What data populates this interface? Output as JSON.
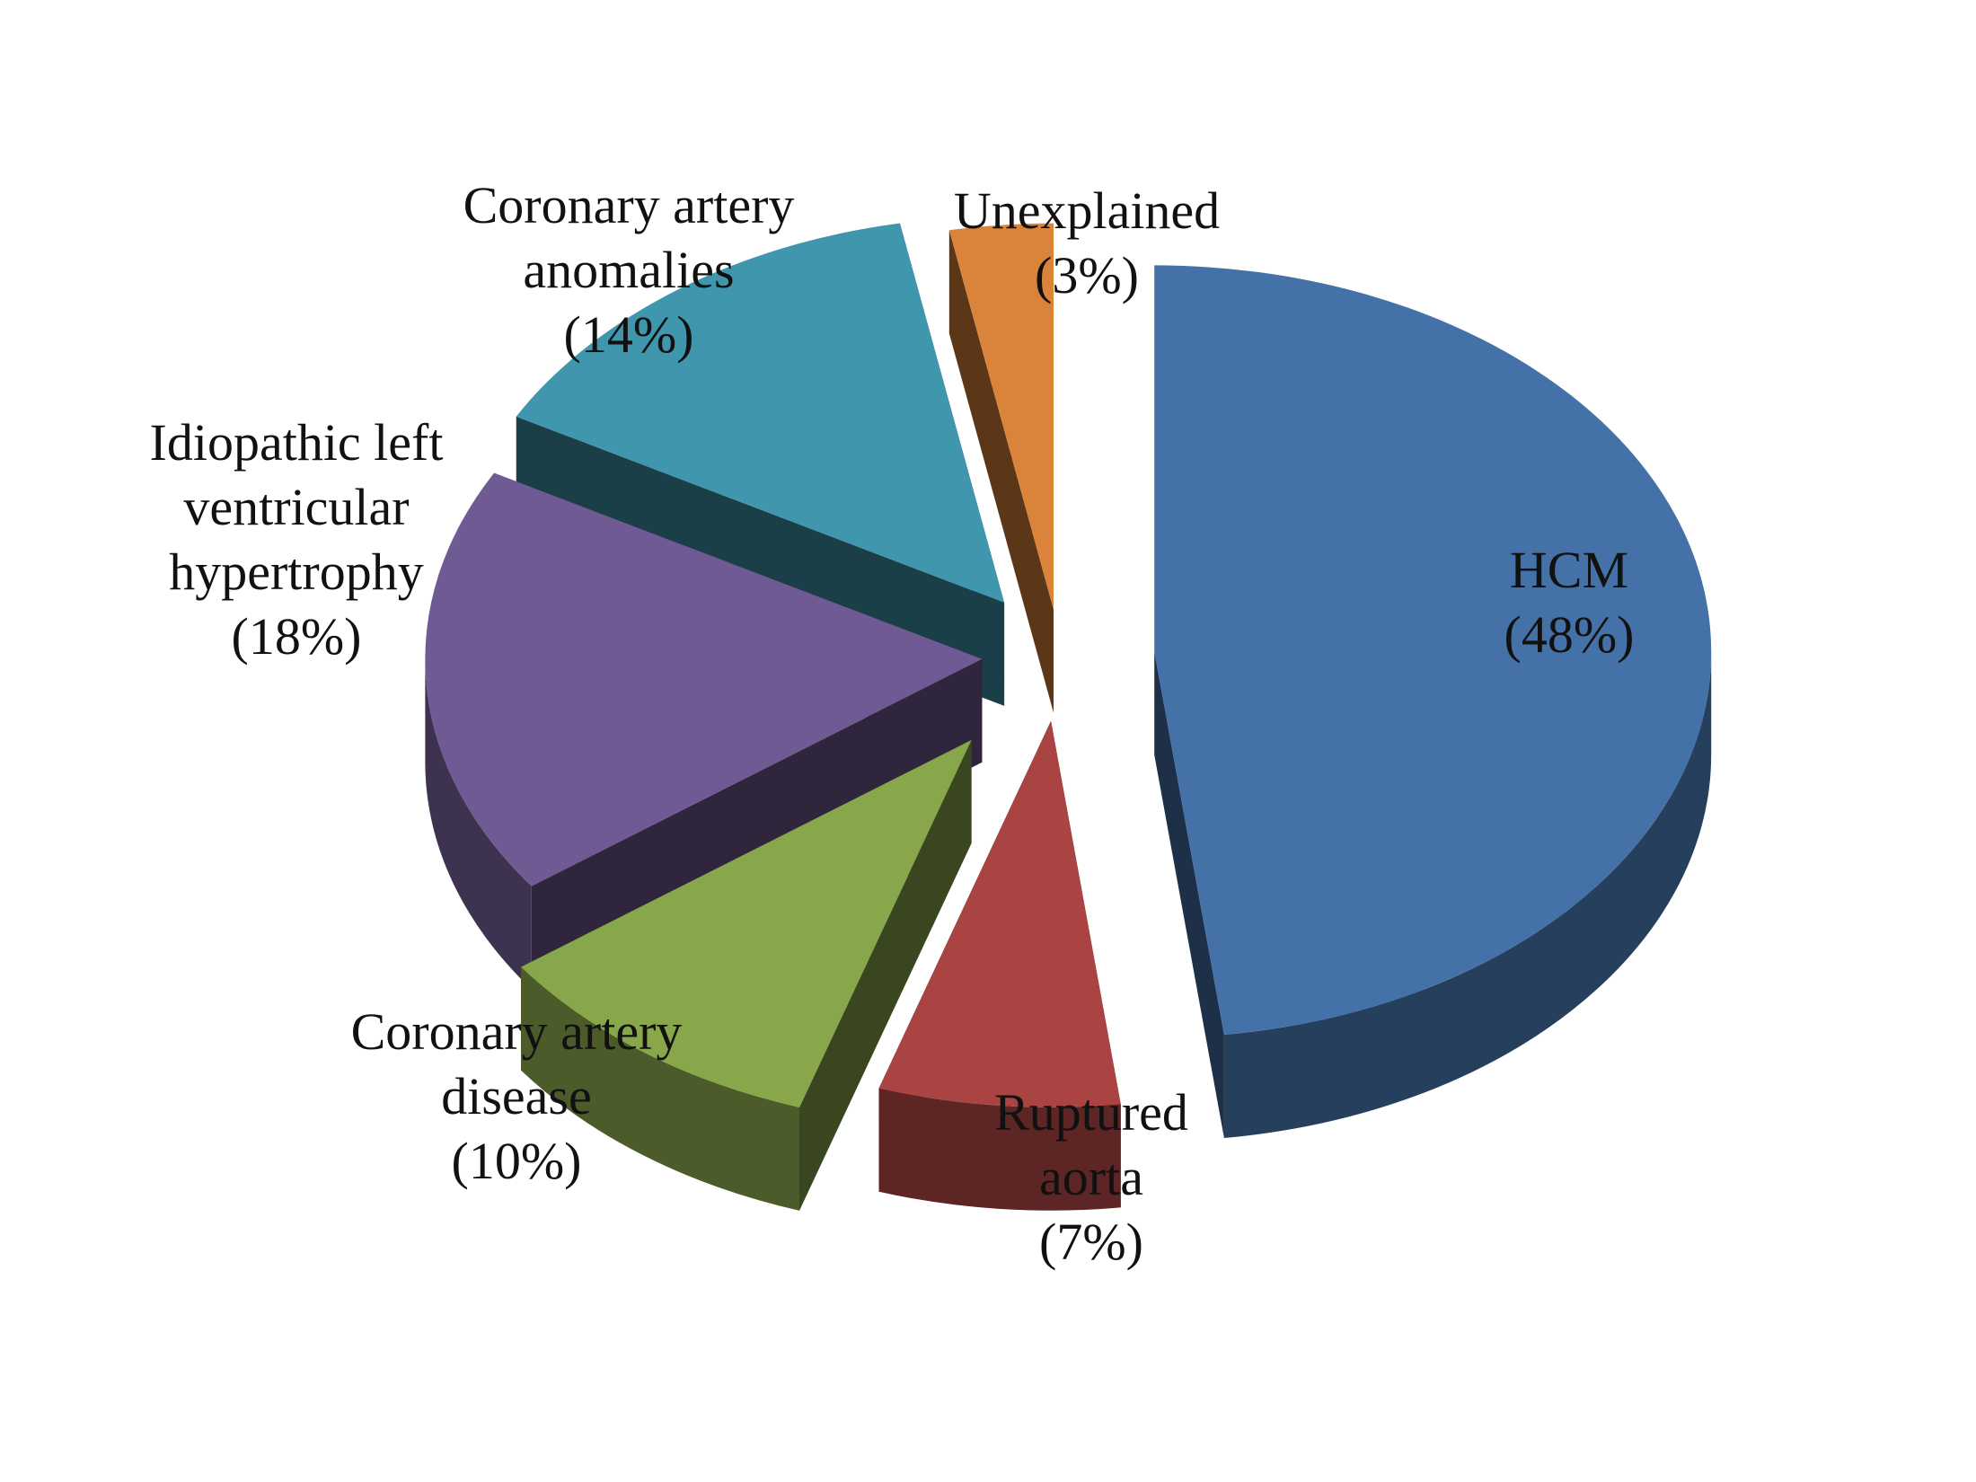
{
  "chart_data": {
    "type": "pie",
    "title": "",
    "slices": [
      {
        "name": "HCM",
        "value": 48,
        "label_lines": [
          "HCM",
          "(48%)"
        ],
        "color": "#4472a8"
      },
      {
        "name": "Ruptured aorta",
        "value": 7,
        "label_lines": [
          "Ruptured",
          "aorta",
          "(7%)"
        ],
        "color": "#a94442"
      },
      {
        "name": "Coronary artery disease",
        "value": 10,
        "label_lines": [
          "Coronary artery",
          "disease",
          "(10%)"
        ],
        "color": "#88a64a"
      },
      {
        "name": "Idiopathic left ventricular hypertrophy",
        "value": 18,
        "label_lines": [
          "Idiopathic left",
          "ventricular",
          "hypertrophy",
          "(18%)"
        ],
        "color": "#705a93"
      },
      {
        "name": "Coronary artery anomalies",
        "value": 14,
        "label_lines": [
          "Coronary artery",
          "anomalies",
          "(14%)"
        ],
        "color": "#3f96ad"
      },
      {
        "name": "Unexplained",
        "value": 3,
        "label_lines": [
          "Unexplained",
          "(3%)"
        ],
        "color": "#d9843a"
      }
    ],
    "exploded": true,
    "three_d": true,
    "legend": "none"
  }
}
